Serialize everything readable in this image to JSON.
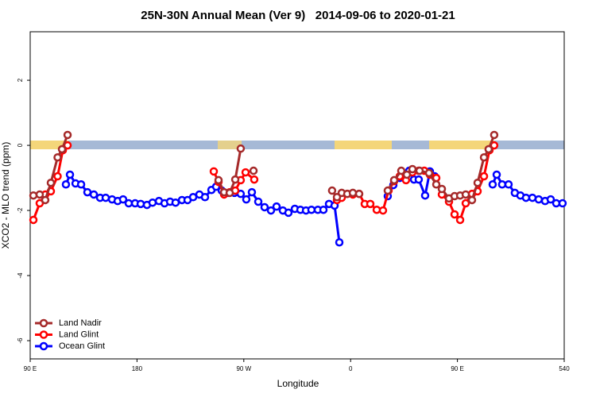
{
  "chart_data": {
    "type": "line",
    "title": "25N-30N Annual Mean (Ver 9)   2014-09-06 to 2020-01-21",
    "x_label": "Longitude",
    "y_label": "XCO2 - MLO trend (ppm)",
    "xlim": [
      90,
      540
    ],
    "ylim": [
      -6.56,
      3.49
    ],
    "xticks": [
      {
        "value": 90,
        "label": "90 E"
      },
      180,
      {
        "value": 270,
        "label": "90 W"
      },
      {
        "value": 360,
        "label": "0"
      },
      {
        "value": 450,
        "label": "90 E"
      },
      540
    ],
    "yticks": [
      2,
      0,
      -2,
      -4,
      -6
    ],
    "legend": "bottom-left",
    "series": [
      {
        "name": "Land Nadir",
        "color": "#a52a2a",
        "x": [
          92.7,
          98.0,
          102.7,
          107.4,
          113.1,
          116.8,
          121.5,
          null,
          248.7,
          253.4,
          258.1,
          262.8,
          267.4,
          null,
          278.2,
          null,
          344.4,
          348.5,
          352.5,
          357.2,
          361.9,
          367.2,
          null,
          391.3,
          396.7,
          402.7,
          407.4,
          412.1,
          418.1,
          426.1,
          432.2,
          436.9,
          442.9,
          447.6,
          452.3,
          457.0,
          462.3,
          467.0,
          472.4,
          476.3,
          481.0
        ],
        "values": [
          -1.54,
          -1.51,
          -1.68,
          -1.15,
          -0.37,
          -0.12,
          0.32,
          null,
          -1.07,
          -1.44,
          -1.46,
          -1.05,
          -0.1,
          null,
          -0.78,
          null,
          -1.39,
          -1.59,
          -1.46,
          -1.49,
          -1.46,
          -1.49,
          null,
          -1.39,
          -1.07,
          -0.78,
          -0.9,
          -0.73,
          -0.78,
          -0.85,
          -1.2,
          -1.34,
          -1.63,
          -1.56,
          -1.54,
          -1.51,
          -1.68,
          -1.15,
          -0.37,
          -0.12,
          0.32
        ]
      },
      {
        "name": "Land Glint",
        "color": "#ff0000",
        "x": [
          92.7,
          98.0,
          102.7,
          107.4,
          113.1,
          117.5,
          121.5,
          null,
          244.7,
          248.7,
          253.4,
          258.1,
          262.8,
          267.4,
          271.5,
          278.8,
          null,
          348.5,
          352.5,
          357.2,
          361.9,
          367.2,
          371.9,
          376.6,
          382.0,
          387.3,
          392.0,
          396.7,
          401.4,
          406.7,
          412.1,
          417.4,
          422.1,
          426.8,
          432.2,
          436.9,
          442.9,
          447.6,
          452.3,
          457.0,
          462.3,
          467.0,
          472.4,
          477.0,
          481.0
        ],
        "values": [
          -2.29,
          -1.78,
          -1.51,
          -1.41,
          -0.95,
          -0.15,
          0.0,
          null,
          -0.8,
          -1.12,
          -1.51,
          -1.44,
          -1.39,
          -1.07,
          -0.83,
          -1.05,
          null,
          -1.68,
          -1.61,
          -1.49,
          -1.51,
          -1.49,
          -1.8,
          -1.8,
          -1.98,
          -2.0,
          -1.39,
          -1.1,
          -0.95,
          -1.07,
          -0.83,
          -0.78,
          -0.78,
          -0.9,
          -1.0,
          -1.51,
          -1.73,
          -2.12,
          -2.29,
          -1.78,
          -1.49,
          -1.41,
          -0.95,
          -0.15,
          0.0
        ]
      },
      {
        "name": "Ocean Glint",
        "color": "#0000ff",
        "x": [
          120.1,
          123.5,
          128.2,
          132.9,
          138.2,
          143.6,
          148.9,
          153.6,
          159.0,
          163.7,
          168.3,
          173.0,
          178.4,
          183.1,
          188.4,
          193.1,
          198.5,
          203.2,
          207.9,
          212.5,
          217.9,
          222.6,
          227.3,
          232.6,
          237.3,
          242.7,
          246.7,
          251.4,
          257.4,
          262.1,
          267.4,
          272.1,
          276.8,
          282.2,
          287.5,
          292.9,
          297.6,
          302.9,
          307.6,
          313.0,
          317.7,
          322.4,
          327.0,
          332.4,
          337.1,
          341.8,
          346.5,
          350.5,
          null,
          391.3,
          396.0,
          401.4,
          405.4,
          409.4,
          413.4,
          417.4,
          422.8,
          426.8,
          430.8,
          null,
          479.7,
          483.1,
          487.7,
          493.1,
          498.4,
          503.1,
          507.8,
          513.2,
          518.5,
          523.9,
          528.6,
          533.3,
          538.6
        ],
        "values": [
          -1.2,
          -0.9,
          -1.17,
          -1.2,
          -1.44,
          -1.51,
          -1.61,
          -1.61,
          -1.66,
          -1.71,
          -1.66,
          -1.78,
          -1.78,
          -1.8,
          -1.83,
          -1.76,
          -1.71,
          -1.78,
          -1.73,
          -1.76,
          -1.68,
          -1.68,
          -1.59,
          -1.51,
          -1.59,
          -1.37,
          -1.27,
          -1.39,
          -1.46,
          -1.46,
          -1.49,
          -1.66,
          -1.44,
          -1.73,
          -1.9,
          -2.0,
          -1.88,
          -2.0,
          -2.07,
          -1.95,
          -1.98,
          -2.0,
          -1.98,
          -1.98,
          -1.98,
          -1.8,
          -1.85,
          -2.98,
          null,
          -1.56,
          -1.22,
          -1.0,
          -0.88,
          -0.78,
          -1.05,
          -1.05,
          -1.54,
          -0.8,
          -0.95,
          null,
          -1.2,
          -0.9,
          -1.2,
          -1.2,
          -1.46,
          -1.54,
          -1.61,
          -1.61,
          -1.66,
          -1.71,
          -1.66,
          -1.78,
          -1.78
        ]
      }
    ]
  }
}
